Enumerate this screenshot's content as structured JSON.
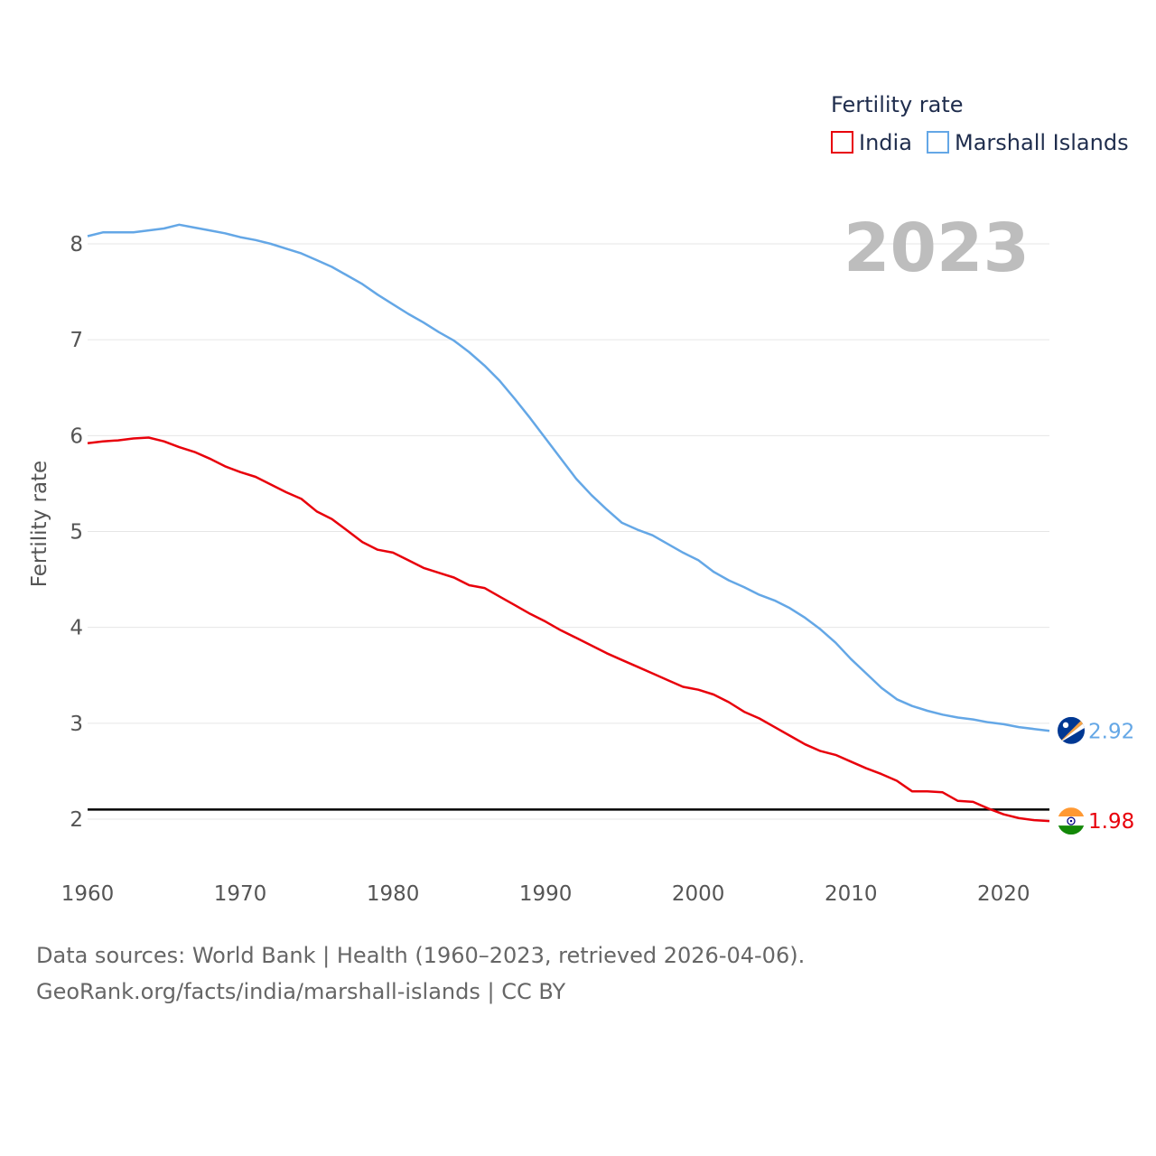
{
  "chart_data": {
    "type": "line",
    "title": "",
    "legend_title": "Fertility rate",
    "ylabel": "Fertility rate",
    "xlabel": "",
    "xlim": [
      1960,
      2023
    ],
    "ylim": [
      1.5,
      8.5
    ],
    "x_ticks": [
      "1960",
      "1970",
      "1980",
      "1990",
      "2000",
      "2010",
      "2020"
    ],
    "y_ticks": [
      "2",
      "3",
      "4",
      "5",
      "6",
      "7",
      "8"
    ],
    "x": [
      1960,
      1961,
      1962,
      1963,
      1964,
      1965,
      1966,
      1967,
      1968,
      1969,
      1970,
      1971,
      1972,
      1973,
      1974,
      1975,
      1976,
      1977,
      1978,
      1979,
      1980,
      1981,
      1982,
      1983,
      1984,
      1985,
      1986,
      1987,
      1988,
      1989,
      1990,
      1991,
      1992,
      1993,
      1994,
      1995,
      1996,
      1997,
      1998,
      1999,
      2000,
      2001,
      2002,
      2003,
      2004,
      2005,
      2006,
      2007,
      2008,
      2009,
      2010,
      2011,
      2012,
      2013,
      2014,
      2015,
      2016,
      2017,
      2018,
      2019,
      2020,
      2021,
      2022,
      2023
    ],
    "series": [
      {
        "name": "India",
        "color": "#e8000b",
        "end_label": "1.98",
        "flag": "india-flag",
        "values": [
          5.92,
          5.94,
          5.95,
          5.97,
          5.98,
          5.94,
          5.88,
          5.83,
          5.76,
          5.68,
          5.62,
          5.57,
          5.49,
          5.41,
          5.34,
          5.21,
          5.13,
          5.01,
          4.89,
          4.81,
          4.78,
          4.7,
          4.62,
          4.57,
          4.52,
          4.44,
          4.41,
          4.32,
          4.23,
          4.14,
          4.06,
          3.97,
          3.89,
          3.81,
          3.73,
          3.66,
          3.59,
          3.52,
          3.45,
          3.38,
          3.35,
          3.3,
          3.22,
          3.12,
          3.05,
          2.96,
          2.87,
          2.78,
          2.71,
          2.67,
          2.6,
          2.53,
          2.47,
          2.4,
          2.29,
          2.29,
          2.28,
          2.19,
          2.18,
          2.11,
          2.05,
          2.01,
          1.99,
          1.98
        ]
      },
      {
        "name": "Marshall Islands",
        "color": "#64a7e6",
        "end_label": "2.92",
        "flag": "marshall-islands-flag",
        "values": [
          8.08,
          8.12,
          8.12,
          8.12,
          8.14,
          8.16,
          8.2,
          8.17,
          8.14,
          8.11,
          8.07,
          8.04,
          8.0,
          7.95,
          7.9,
          7.83,
          7.76,
          7.67,
          7.58,
          7.47,
          7.37,
          7.27,
          7.18,
          7.08,
          6.99,
          6.87,
          6.73,
          6.57,
          6.38,
          6.18,
          5.97,
          5.76,
          5.55,
          5.38,
          5.23,
          5.09,
          5.02,
          4.96,
          4.87,
          4.78,
          4.7,
          4.58,
          4.49,
          4.42,
          4.34,
          4.28,
          4.2,
          4.1,
          3.98,
          3.84,
          3.67,
          3.52,
          3.37,
          3.25,
          3.18,
          3.13,
          3.09,
          3.06,
          3.04,
          3.01,
          2.99,
          2.96,
          2.94,
          2.92
        ]
      }
    ],
    "reference_line": {
      "value": 2.1,
      "color": "#000000"
    },
    "legend_position": "top-right",
    "current_year_label": "2023"
  },
  "source": {
    "line1": "Data sources: World Bank | Health (1960–2023, retrieved 2026-04-06).",
    "line2": "GeoRank.org/facts/india/marshall-islands | CC BY"
  }
}
